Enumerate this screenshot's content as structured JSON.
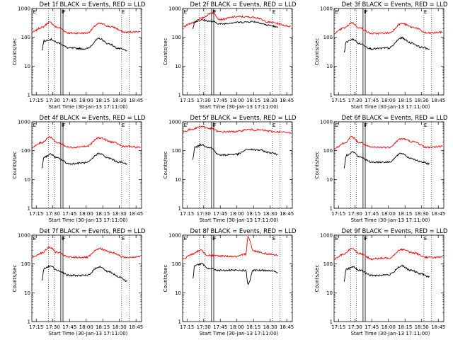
{
  "chart_data": [
    {
      "type": "line",
      "title": "Det 1f BLACK = Events, RED = LLD",
      "xlabel": "Start Time (30-Jan-13 17:11:00)",
      "ylabel": "Counts/sec",
      "yscale": "log",
      "ylim": [
        1,
        1000
      ],
      "xlim": [
        "17:11",
        "18:50"
      ],
      "x_ticks": [
        "17:15",
        "17:30",
        "17:45",
        "18:00",
        "18:15",
        "18:30",
        "18:45"
      ],
      "y_ticks": [
        "1",
        "10",
        "100",
        "1000"
      ],
      "markers": [
        "E",
        "F",
        "F",
        "E"
      ],
      "series": [
        {
          "color": "#ff0000",
          "x": [
            "17:11",
            "17:20",
            "17:27",
            "17:34",
            "17:45",
            "18:00",
            "18:12",
            "18:23",
            "18:35",
            "18:49"
          ],
          "y": [
            150,
            220,
            330,
            220,
            140,
            140,
            300,
            230,
            150,
            160
          ]
        },
        {
          "color": "#000000",
          "x": [
            "17:20",
            "17:22",
            "17:28",
            "17:34",
            "17:45",
            "18:00",
            "18:12",
            "18:20",
            "18:30",
            "18:37"
          ],
          "y": [
            35,
            75,
            85,
            65,
            42,
            40,
            90,
            60,
            40,
            35
          ]
        }
      ]
    },
    {
      "type": "line",
      "title": "Det 2f BLACK = Events, RED = LLD",
      "xlabel": "Start Time (30-Jan-13 17:11:00)",
      "ylabel": "Counts/sec",
      "yscale": "log",
      "ylim": [
        1,
        1000
      ],
      "xlim": [
        "17:11",
        "18:50"
      ],
      "x_ticks": [
        "17:15",
        "17:30",
        "17:45",
        "18:00",
        "18:15",
        "18:30",
        "18:45"
      ],
      "y_ticks": [
        "1",
        "10",
        "100",
        "1000"
      ],
      "markers": [
        "E",
        "F",
        "F",
        "E"
      ],
      "series": [
        {
          "color": "#ff0000",
          "x": [
            "17:11",
            "17:20",
            "17:27",
            "17:38",
            "17:45",
            "18:00",
            "18:15",
            "18:30",
            "18:49"
          ],
          "y": [
            230,
            320,
            450,
            700,
            420,
            520,
            500,
            330,
            240
          ]
        },
        {
          "color": "#000000",
          "x": [
            "17:20",
            "17:22",
            "17:28",
            "17:38",
            "17:45",
            "18:00",
            "18:15",
            "18:30",
            "18:37"
          ],
          "y": [
            200,
            350,
            400,
            350,
            290,
            330,
            350,
            260,
            220
          ]
        }
      ]
    },
    {
      "type": "line",
      "title": "Det 3f BLACK = Events, RED = LLD",
      "xlabel": "Start Time (30-Jan-13 17:11:00)",
      "ylabel": "Counts/sec",
      "yscale": "log",
      "ylim": [
        1,
        1000
      ],
      "xlim": [
        "17:11",
        "18:50"
      ],
      "x_ticks": [
        "17:15",
        "17:30",
        "17:45",
        "18:00",
        "18:15",
        "18:30",
        "18:45"
      ],
      "y_ticks": [
        "1",
        "10",
        "100",
        "1000"
      ],
      "markers": [
        "E",
        "F",
        "F",
        "E"
      ],
      "series": [
        {
          "color": "#ff0000",
          "x": [
            "17:11",
            "17:20",
            "17:27",
            "17:34",
            "17:45",
            "18:00",
            "18:12",
            "18:23",
            "18:35",
            "18:49"
          ],
          "y": [
            140,
            210,
            320,
            210,
            135,
            140,
            300,
            220,
            140,
            150
          ]
        },
        {
          "color": "#000000",
          "x": [
            "17:20",
            "17:22",
            "17:28",
            "17:34",
            "17:45",
            "18:00",
            "18:12",
            "18:20",
            "18:30",
            "18:37"
          ],
          "y": [
            30,
            70,
            85,
            60,
            40,
            42,
            95,
            65,
            45,
            40
          ]
        }
      ]
    },
    {
      "type": "line",
      "title": "Det 4f BLACK = Events, RED = LLD",
      "xlabel": "Start Time (30-Jan-13 17:11:00)",
      "ylabel": "Counts/sec",
      "yscale": "log",
      "ylim": [
        1,
        1000
      ],
      "xlim": [
        "17:11",
        "18:50"
      ],
      "x_ticks": [
        "17:15",
        "17:30",
        "17:45",
        "18:00",
        "18:15",
        "18:30",
        "18:45"
      ],
      "y_ticks": [
        "1",
        "10",
        "100",
        "1000"
      ],
      "markers": [
        "E",
        "F",
        "F",
        "E"
      ],
      "series": [
        {
          "color": "#ff0000",
          "x": [
            "17:11",
            "17:20",
            "17:27",
            "17:34",
            "17:45",
            "18:00",
            "18:12",
            "18:23",
            "18:35",
            "18:49"
          ],
          "y": [
            130,
            190,
            300,
            190,
            130,
            140,
            280,
            200,
            140,
            130
          ]
        },
        {
          "color": "#000000",
          "x": [
            "17:20",
            "17:22",
            "17:28",
            "17:34",
            "17:45",
            "18:00",
            "18:12",
            "18:20",
            "18:30",
            "18:37"
          ],
          "y": [
            25,
            60,
            75,
            55,
            35,
            38,
            80,
            55,
            40,
            35
          ]
        }
      ]
    },
    {
      "type": "line",
      "title": "Det 5f BLACK = Events, RED = LLD",
      "xlabel": "Start Time (30-Jan-13 17:11:00)",
      "ylabel": "Counts/sec",
      "yscale": "log",
      "ylim": [
        1,
        1000
      ],
      "xlim": [
        "17:11",
        "18:50"
      ],
      "x_ticks": [
        "17:15",
        "17:30",
        "17:45",
        "18:00",
        "18:15",
        "18:30",
        "18:45"
      ],
      "y_ticks": [
        "1",
        "10",
        "100",
        "1000"
      ],
      "markers": [
        "E",
        "F",
        "F",
        "E"
      ],
      "series": [
        {
          "color": "#ff0000",
          "x": [
            "17:11",
            "17:20",
            "17:28",
            "17:36",
            "17:45",
            "18:00",
            "18:10",
            "18:20",
            "18:35",
            "18:49"
          ],
          "y": [
            450,
            560,
            700,
            580,
            450,
            460,
            540,
            520,
            450,
            420
          ]
        },
        {
          "color": "#000000",
          "x": [
            "17:20",
            "17:22",
            "17:28",
            "17:35",
            "17:45",
            "18:00",
            "18:10",
            "18:20",
            "18:30",
            "18:37"
          ],
          "y": [
            50,
            130,
            160,
            130,
            70,
            75,
            110,
            105,
            85,
            75
          ]
        }
      ]
    },
    {
      "type": "line",
      "title": "Det 6f BLACK = Events, RED = LLD",
      "xlabel": "Start Time (30-Jan-13 17:11:00)",
      "ylabel": "Counts/sec",
      "yscale": "log",
      "ylim": [
        1,
        1000
      ],
      "xlim": [
        "17:11",
        "18:50"
      ],
      "x_ticks": [
        "17:15",
        "17:30",
        "17:45",
        "18:00",
        "18:15",
        "18:30",
        "18:45"
      ],
      "y_ticks": [
        "1",
        "10",
        "100",
        "1000"
      ],
      "markers": [
        "E",
        "F",
        "F",
        "E"
      ],
      "series": [
        {
          "color": "#ff0000",
          "x": [
            "17:11",
            "17:20",
            "17:27",
            "17:34",
            "17:45",
            "18:00",
            "18:12",
            "18:23",
            "18:35",
            "18:49"
          ],
          "y": [
            120,
            180,
            300,
            190,
            130,
            130,
            260,
            200,
            130,
            140
          ]
        },
        {
          "color": "#000000",
          "x": [
            "17:20",
            "17:22",
            "17:28",
            "17:34",
            "17:45",
            "18:00",
            "18:12",
            "18:20",
            "18:30",
            "18:37"
          ],
          "y": [
            25,
            70,
            90,
            60,
            40,
            40,
            80,
            55,
            40,
            35
          ]
        }
      ]
    },
    {
      "type": "line",
      "title": "Det 7f BLACK = Events, RED = LLD",
      "xlabel": "Start Time (30-Jan-13 17:11:00)",
      "ylabel": "Counts/sec",
      "yscale": "log",
      "ylim": [
        1,
        1000
      ],
      "xlim": [
        "17:11",
        "18:50"
      ],
      "x_ticks": [
        "17:15",
        "17:30",
        "17:45",
        "18:00",
        "18:15",
        "18:30",
        "18:45"
      ],
      "y_ticks": [
        "1",
        "10",
        "100",
        "1000"
      ],
      "markers": [
        "E",
        "F",
        "F",
        "E"
      ],
      "series": [
        {
          "color": "#ff0000",
          "x": [
            "17:11",
            "17:20",
            "17:27",
            "17:34",
            "17:45",
            "18:00",
            "18:12",
            "18:23",
            "18:35",
            "18:49"
          ],
          "y": [
            170,
            240,
            380,
            250,
            170,
            170,
            340,
            250,
            170,
            180
          ]
        },
        {
          "color": "#000000",
          "x": [
            "17:20",
            "17:22",
            "17:28",
            "17:34",
            "17:45",
            "18:00",
            "18:12",
            "18:20",
            "18:30",
            "18:37"
          ],
          "y": [
            25,
            70,
            85,
            60,
            40,
            40,
            80,
            55,
            35,
            25
          ]
        }
      ]
    },
    {
      "type": "line",
      "title": "Det 8f BLACK = Events, RED = LLD",
      "xlabel": "Start Time (30-Jan-13 17:11:00)",
      "ylabel": "Counts/sec",
      "yscale": "log",
      "ylim": [
        1,
        1000
      ],
      "xlim": [
        "17:11",
        "18:50"
      ],
      "x_ticks": [
        "17:15",
        "17:30",
        "17:45",
        "18:00",
        "18:15",
        "18:30",
        "18:45"
      ],
      "y_ticks": [
        "1",
        "10",
        "100",
        "1000"
      ],
      "markers": [
        "E",
        "F",
        "F",
        "E"
      ],
      "series": [
        {
          "color": "#ff0000",
          "x": [
            "17:11",
            "17:20",
            "17:27",
            "17:34",
            "17:45",
            "18:00",
            "18:08",
            "18:10",
            "18:15",
            "18:30",
            "18:37"
          ],
          "y": [
            150,
            220,
            300,
            200,
            190,
            180,
            220,
            900,
            280,
            220,
            200
          ]
        },
        {
          "color": "#000000",
          "x": [
            "17:20",
            "17:22",
            "17:28",
            "17:34",
            "17:45",
            "18:00",
            "18:08",
            "18:10",
            "18:15",
            "18:30",
            "18:37"
          ],
          "y": [
            30,
            90,
            100,
            70,
            60,
            60,
            60,
            20,
            60,
            60,
            50
          ]
        }
      ]
    },
    {
      "type": "line",
      "title": "Det 9f BLACK = Events, RED = LLD",
      "xlabel": "Start Time (30-Jan-13 17:11:00)",
      "ylabel": "Counts/sec",
      "yscale": "log",
      "ylim": [
        1,
        1000
      ],
      "xlim": [
        "17:11",
        "18:50"
      ],
      "x_ticks": [
        "17:15",
        "17:30",
        "17:45",
        "18:00",
        "18:15",
        "18:30",
        "18:45"
      ],
      "y_ticks": [
        "1",
        "10",
        "100",
        "1000"
      ],
      "markers": [
        "E",
        "F",
        "F",
        "E"
      ],
      "series": [
        {
          "color": "#ff0000",
          "x": [
            "17:11",
            "17:20",
            "17:27",
            "17:34",
            "17:45",
            "18:00",
            "18:12",
            "18:23",
            "18:35",
            "18:49"
          ],
          "y": [
            150,
            220,
            350,
            230,
            150,
            160,
            320,
            240,
            170,
            170
          ]
        },
        {
          "color": "#000000",
          "x": [
            "17:20",
            "17:22",
            "17:28",
            "17:34",
            "17:45",
            "18:00",
            "18:12",
            "18:20",
            "18:30",
            "18:37"
          ],
          "y": [
            25,
            65,
            80,
            60,
            40,
            42,
            85,
            60,
            45,
            35
          ]
        }
      ]
    }
  ]
}
